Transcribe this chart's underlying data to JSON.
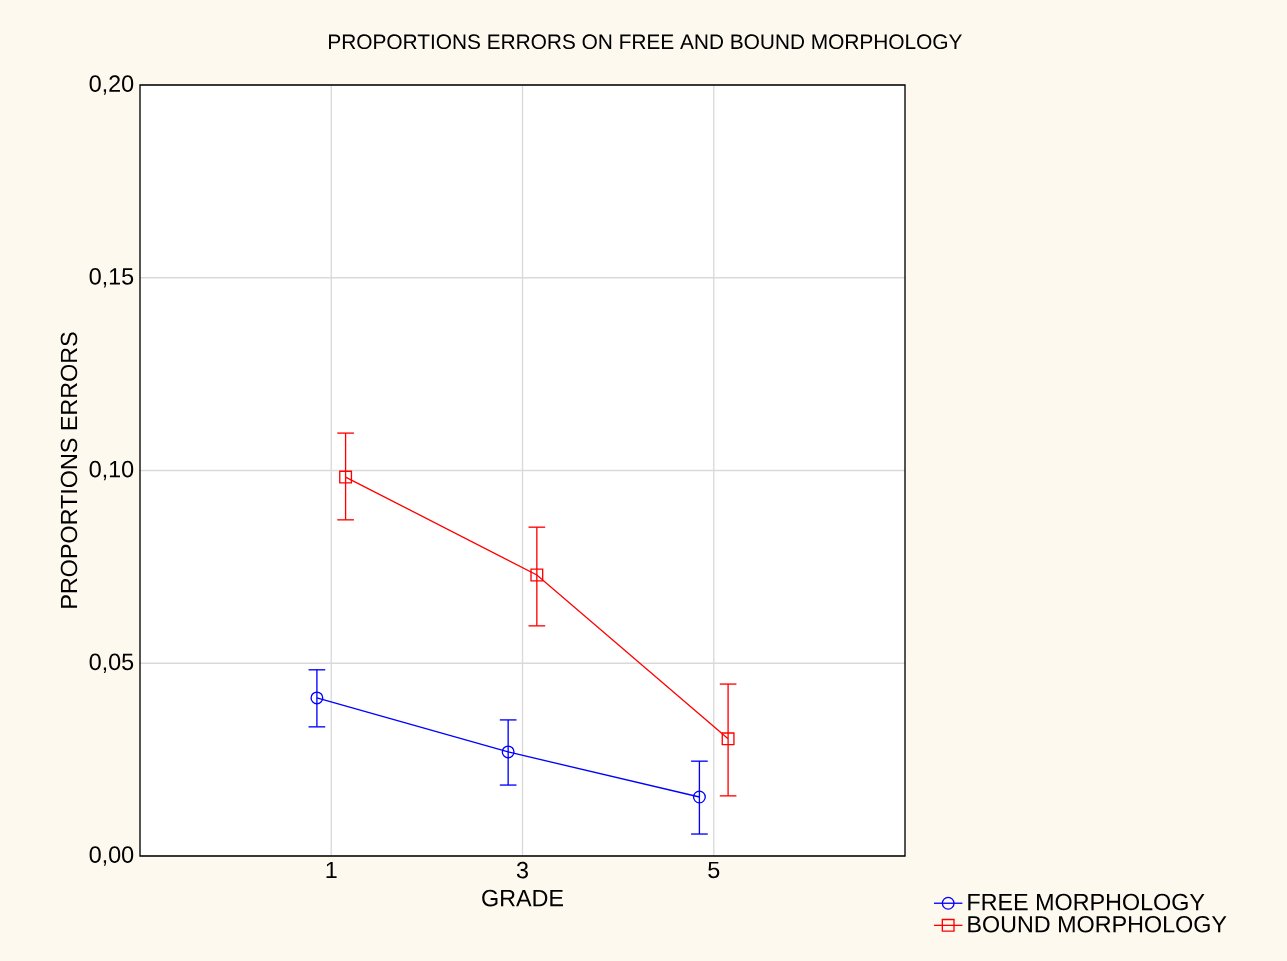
{
  "chart_data": {
    "type": "line",
    "title": "PROPORTIONS ERRORS ON FREE AND BOUND MORPHOLOGY",
    "xlabel": "GRADE",
    "ylabel": "PROPORTIONS ERRORS",
    "categories": [
      "1",
      "3",
      "5"
    ],
    "series": [
      {
        "name": "FREE MORPHOLOGY",
        "color": "#0000ff",
        "marker": "circle",
        "values": [
          0.041,
          0.027,
          0.0153
        ],
        "errors": [
          [
            0.0335,
            0.0483
          ],
          [
            0.0184,
            0.0353
          ],
          [
            0.0057,
            0.0246
          ]
        ]
      },
      {
        "name": "BOUND MORPHOLOGY",
        "color": "#ff0000",
        "marker": "square",
        "values": [
          0.0983,
          0.0729,
          0.0304
        ],
        "errors": [
          [
            0.0872,
            0.1097
          ],
          [
            0.0597,
            0.0853
          ],
          [
            0.0156,
            0.0446
          ]
        ]
      }
    ],
    "ylim": [
      0,
      0.2
    ],
    "yticks": [
      {
        "value": 0,
        "label": "0,00"
      },
      {
        "value": 0.05,
        "label": "0,05"
      },
      {
        "value": 0.1,
        "label": "0,10"
      },
      {
        "value": 0.15,
        "label": "0,15"
      },
      {
        "value": 0.2,
        "label": "0,20"
      }
    ],
    "grid": true,
    "legend": "bottom right"
  }
}
